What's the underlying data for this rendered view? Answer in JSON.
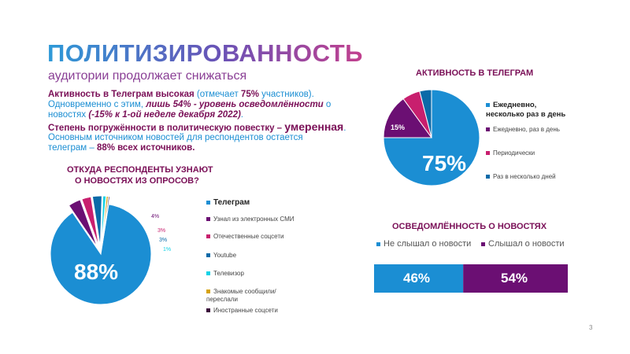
{
  "title": "ПОЛИТИЗИРОВАННОСТЬ",
  "subtitle": "аудитории продолжает снижаться",
  "intro": {
    "l1a": "Активность в Телеграм высокая",
    "l1b": " (отмечает ",
    "l1c": "75%",
    "l1d": " участников).",
    "l2a": "Одновременно с этим, ",
    "l2b": "лишь 54% - уровень осведомлённости",
    "l2c": " о",
    "l3a": "новостях ",
    "l3b": "(-15% к 1-ой неделе декабря 2022)",
    "l3c": ".",
    "l4a": "Степень погружённости в политическую повестку – ",
    "l4b": "умеренная",
    "l4c": ".",
    "l5": "Основным источником новостей для респондентов остается",
    "l6a": "телеграм – ",
    "l6b": "88% всех источников."
  },
  "sources": {
    "title_line1": "ОТКУДА РЕСПОНДЕНТЫ УЗНАЮТ",
    "title_line2": "О НОВОСТЯХ ИЗ ОПРОСОВ?",
    "big_label": "88%",
    "slice_labels": [
      "4%",
      "3%",
      "3%",
      "1%"
    ],
    "legend": [
      "Телеграм",
      "Узнал из электронных СМИ",
      "Отечественные соцсети",
      "Youtube",
      "Телевизор",
      "Знакомые сообщили/переслали",
      "Иностранные соцсети"
    ]
  },
  "activity": {
    "title": "АКТИВНОСТЬ В ТЕЛЕГРАМ",
    "big_label": "75%",
    "slice_label": "15%",
    "legend": [
      "Ежедневно, несколько раз в день",
      "Ежедневно, раз в день",
      "Периодически",
      "Раз в несколько дней"
    ]
  },
  "awareness": {
    "title": "ОСВЕДОМЛЁННОСТЬ О НОВОСТЯХ",
    "legend": [
      "Не слышал о новости",
      "Слышал о новости"
    ],
    "labels": [
      "46%",
      "54%"
    ]
  },
  "page_number": "3",
  "chart_data": [
    {
      "type": "pie",
      "title": "ОТКУДА РЕСПОНДЕНТЫ УЗНАЮТ О НОВОСТЯХ ИЗ ОПРОСОВ?",
      "categories": [
        "Телеграм",
        "Узнал из электронных СМИ",
        "Отечественные соцсети",
        "Youtube",
        "Телевизор",
        "Знакомые сообщили/переслали",
        "Иностранные соцсети"
      ],
      "values": [
        88,
        4,
        3,
        3,
        1,
        0.6,
        0.4
      ],
      "colors": [
        "#1b8ed3",
        "#6b0f73",
        "#c81f6e",
        "#0a6aa8",
        "#14d2e6",
        "#d6a310",
        "#3a0a3a"
      ],
      "legend": "right"
    },
    {
      "type": "pie",
      "title": "АКТИВНОСТЬ В ТЕЛЕГРАМ",
      "categories": [
        "Ежедневно, несколько раз в день",
        "Ежедневно, раз в день",
        "Периодически",
        "Раз в несколько дней"
      ],
      "values": [
        75,
        15,
        6,
        4
      ],
      "colors": [
        "#1b8ed3",
        "#6b0f73",
        "#c81f6e",
        "#0a6aa8"
      ],
      "legend": "right"
    },
    {
      "type": "bar",
      "title": "ОСВЕДОМЛЁННОСТЬ О НОВОСТЯХ",
      "categories": [
        "Не слышал о новости",
        "Слышал о новости"
      ],
      "values": [
        46,
        54
      ],
      "colors": [
        "#1b8ed3",
        "#6b0f73"
      ],
      "orientation": "stacked-horizontal",
      "legend": "top"
    }
  ]
}
